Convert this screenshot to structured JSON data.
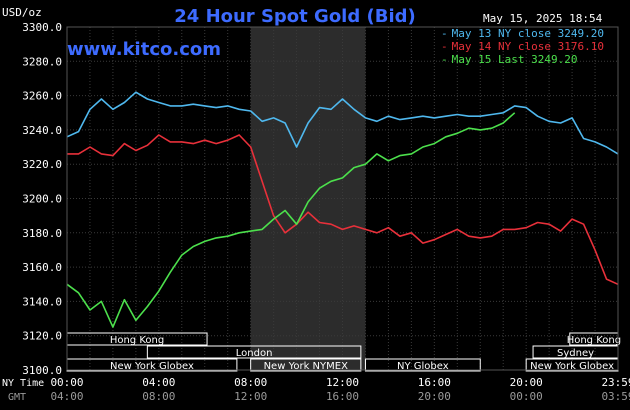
{
  "chart_data": {
    "type": "line",
    "title": "24 Hour Spot Gold (Bid)",
    "watermark": "www.kitco.com",
    "timestamp": "May 15, 2025 18:54",
    "ylabel": "USD/oz",
    "ylim": [
      3100,
      3300
    ],
    "y_ticks": [
      "3300.0",
      "3280.0",
      "3260.0",
      "3240.0",
      "3220.0",
      "3200.0",
      "3180.0",
      "3160.0",
      "3140.0",
      "3120.0",
      "3100.0"
    ],
    "xlim_hours": [
      0,
      24
    ],
    "x_tick_hours": [
      0,
      4,
      8,
      12,
      16,
      20,
      24
    ],
    "x_row_label_ny": "NY Time",
    "x_ticks_ny": [
      "00:00",
      "04:00",
      "08:00",
      "12:00",
      "16:00",
      "20:00",
      "23:59"
    ],
    "x_row_label_gmt": "GMT",
    "x_ticks_gmt": [
      "04:00",
      "08:00",
      "12:00",
      "16:00",
      "20:00",
      "00:00",
      "03:59"
    ],
    "grid": true,
    "legend_position": "top-right",
    "highlight_band_hours": [
      8,
      13
    ],
    "series": [
      {
        "name": "May 13 NY close 3249.20",
        "color": "#4fb8ee",
        "x": [
          0,
          0.5,
          1,
          1.5,
          2,
          2.5,
          3,
          3.5,
          4,
          4.5,
          5,
          5.5,
          6,
          6.5,
          7,
          7.5,
          8,
          8.5,
          9,
          9.5,
          10,
          10.5,
          11,
          11.5,
          12,
          12.5,
          13,
          13.5,
          14,
          14.5,
          15,
          15.5,
          16,
          16.5,
          17,
          17.5,
          18,
          18.5,
          19,
          19.5,
          20,
          20.5,
          21,
          21.5,
          22,
          22.5,
          23,
          23.5,
          24
        ],
        "y": [
          3236,
          3239,
          3252,
          3258,
          3252,
          3256,
          3262,
          3258,
          3256,
          3254,
          3254,
          3255,
          3254,
          3253,
          3254,
          3252,
          3251,
          3245,
          3247,
          3244,
          3230,
          3244,
          3253,
          3252,
          3258,
          3252,
          3247,
          3245,
          3248,
          3246,
          3247,
          3248,
          3247,
          3248,
          3249,
          3248,
          3248,
          3249,
          3250,
          3254,
          3253,
          3248,
          3245,
          3244,
          3247,
          3235,
          3233,
          3230,
          3226
        ]
      },
      {
        "name": "May 14 NY close 3176.10",
        "color": "#e8303a",
        "x": [
          0,
          0.5,
          1,
          1.5,
          2,
          2.5,
          3,
          3.5,
          4,
          4.5,
          5,
          5.5,
          6,
          6.5,
          7,
          7.5,
          8,
          8.5,
          9,
          9.5,
          10,
          10.5,
          11,
          11.5,
          12,
          12.5,
          13,
          13.5,
          14,
          14.5,
          15,
          15.5,
          16,
          16.5,
          17,
          17.5,
          18,
          18.5,
          19,
          19.5,
          20,
          20.5,
          21,
          21.5,
          22,
          22.5,
          23,
          23.5,
          24
        ],
        "y": [
          3226,
          3226,
          3230,
          3226,
          3225,
          3232,
          3228,
          3231,
          3237,
          3233,
          3233,
          3232,
          3234,
          3232,
          3234,
          3237,
          3230,
          3210,
          3190,
          3180,
          3185,
          3192,
          3186,
          3185,
          3182,
          3184,
          3182,
          3180,
          3183,
          3178,
          3180,
          3174,
          3176,
          3179,
          3182,
          3178,
          3177,
          3178,
          3182,
          3182,
          3183,
          3186,
          3185,
          3181,
          3188,
          3185,
          3170,
          3153,
          3150
        ]
      },
      {
        "name": "May 15 Last 3249.20",
        "color": "#4ce04c",
        "x": [
          0,
          0.5,
          1,
          1.5,
          2,
          2.5,
          3,
          3.5,
          4,
          4.5,
          5,
          5.5,
          6,
          6.5,
          7,
          7.5,
          8,
          8.5,
          9,
          9.5,
          10,
          10.5,
          11,
          11.5,
          12,
          12.5,
          13,
          13.5,
          14,
          14.5,
          15,
          15.5,
          16,
          16.5,
          17,
          17.5,
          18,
          18.5,
          19,
          19.5
        ],
        "y": [
          3150,
          3145,
          3135,
          3140,
          3125,
          3141,
          3129,
          3137,
          3146,
          3157,
          3167,
          3172,
          3175,
          3177,
          3178,
          3180,
          3181,
          3182,
          3188,
          3193,
          3185,
          3198,
          3206,
          3210,
          3212,
          3218,
          3220,
          3226,
          3222,
          3225,
          3226,
          3230,
          3232,
          3236,
          3238,
          3241,
          3240,
          3241,
          3244,
          3250
        ]
      }
    ],
    "sessions": [
      {
        "label": "Hong Kong",
        "start": 0,
        "end": 6.1,
        "row": 0
      },
      {
        "label": "Hong Kong",
        "start": 21.9,
        "end": 24,
        "row": 0
      },
      {
        "label": "London",
        "start": 3.5,
        "end": 12.8,
        "row": 1
      },
      {
        "label": "Sydney",
        "start": 20.3,
        "end": 24,
        "row": 1
      },
      {
        "label": "New York Globex",
        "start": 0,
        "end": 7.4,
        "row": 2
      },
      {
        "label": "New York NYMEX",
        "start": 8.0,
        "end": 12.8,
        "row": 2
      },
      {
        "label": "NY Globex",
        "start": 13.0,
        "end": 18.0,
        "row": 2
      },
      {
        "label": "New York Globex",
        "start": 20.0,
        "end": 24,
        "row": 2
      }
    ]
  },
  "colors": {
    "background": "#000000",
    "grid": "#3a3a3a",
    "band": "#2c2c2c",
    "title": "#3d6bff",
    "watermark": "#3d6bff",
    "text": "#ffffff",
    "axis_text": "#ffffff",
    "gmt_text": "#9a9a9a",
    "session_stroke": "#ffffff"
  }
}
